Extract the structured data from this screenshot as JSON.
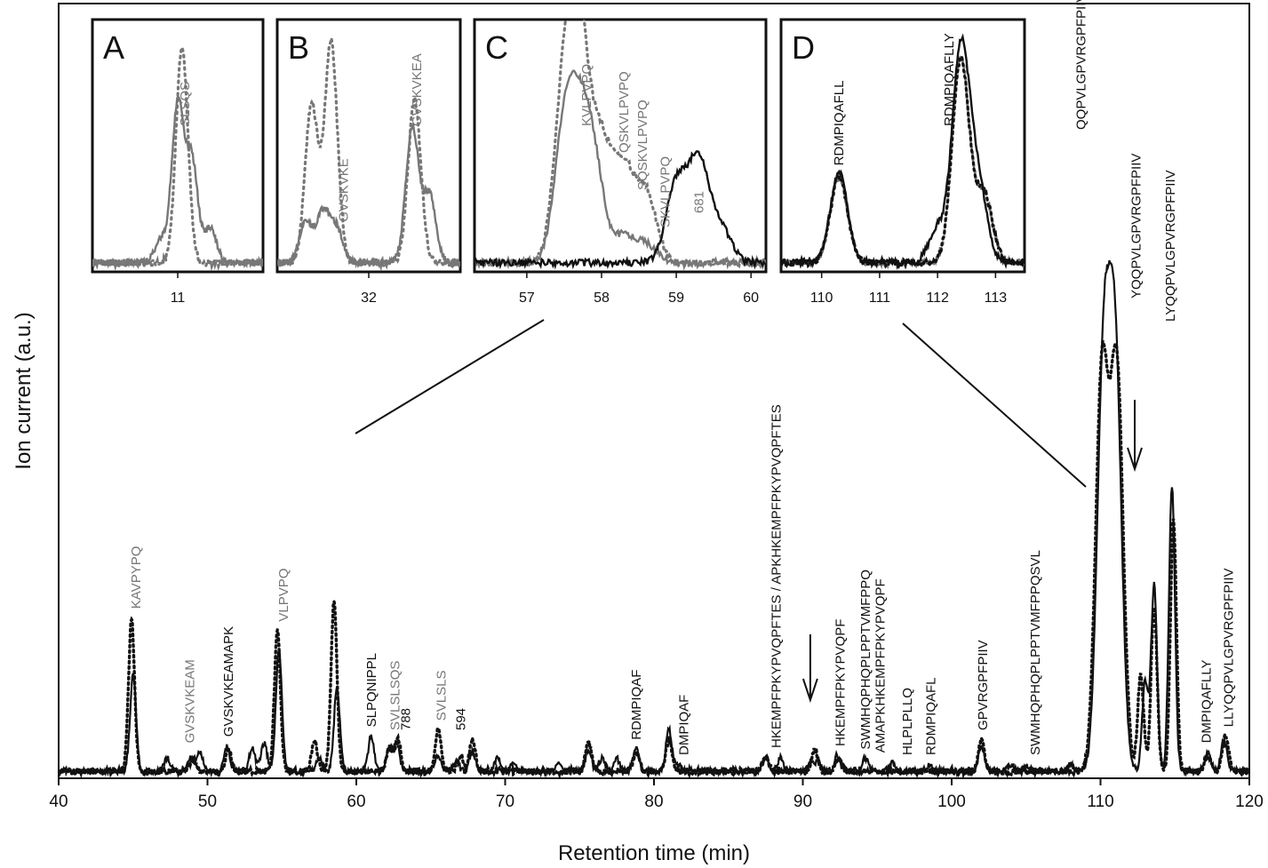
{
  "chart_data": {
    "type": "line",
    "xlabel": "Retention time (min)",
    "ylabel": "Ion current (a.u.)",
    "xlim": [
      40,
      120
    ],
    "xticks": [
      40,
      50,
      60,
      70,
      80,
      90,
      100,
      110,
      120
    ],
    "grid": false,
    "colors": {
      "solid": "#111111",
      "dotted": "#111111",
      "grey_label": "#777777"
    },
    "series": [
      {
        "style": "solid",
        "peaks": [
          [
            45.0,
            0.3
          ],
          [
            47.3,
            0.04
          ],
          [
            48.9,
            0.04
          ],
          [
            49.5,
            0.06
          ],
          [
            51.3,
            0.08
          ],
          [
            53.0,
            0.07
          ],
          [
            53.8,
            0.09
          ],
          [
            54.8,
            0.38
          ],
          [
            57.5,
            0.04
          ],
          [
            58.7,
            0.26
          ],
          [
            61.0,
            0.11
          ],
          [
            62.2,
            0.07
          ],
          [
            62.7,
            0.09
          ],
          [
            65.5,
            0.05
          ],
          [
            66.7,
            0.03
          ],
          [
            67.8,
            0.06
          ],
          [
            69.5,
            0.04
          ],
          [
            70.5,
            0.02
          ],
          [
            73.5,
            0.02
          ],
          [
            75.6,
            0.07
          ],
          [
            76.5,
            0.04
          ],
          [
            77.5,
            0.04
          ],
          [
            78.8,
            0.07
          ],
          [
            81.0,
            0.13
          ],
          [
            81.6,
            0.02
          ],
          [
            87.5,
            0.04
          ],
          [
            88.5,
            0.04
          ],
          [
            90.5,
            0.02
          ],
          [
            91.0,
            0.03
          ],
          [
            92.3,
            0.05
          ],
          [
            94.2,
            0.04
          ],
          [
            96.0,
            0.03
          ],
          [
            98.5,
            0.02
          ],
          [
            102.0,
            0.08
          ],
          [
            104.0,
            0.02
          ],
          [
            105.0,
            0.02
          ],
          [
            108.0,
            0.02
          ],
          [
            110.2,
            1.25
          ],
          [
            111.0,
            1.25
          ],
          [
            113.0,
            0.28
          ],
          [
            113.6,
            0.58
          ],
          [
            114.8,
            0.89
          ],
          [
            117.2,
            0.06
          ],
          [
            118.3,
            0.1
          ]
        ]
      },
      {
        "style": "dotted",
        "peaks": [
          [
            44.9,
            0.48
          ],
          [
            49.0,
            0.04
          ],
          [
            51.4,
            0.07
          ],
          [
            54.7,
            0.44
          ],
          [
            57.2,
            0.09
          ],
          [
            58.5,
            0.53
          ],
          [
            62.2,
            0.07
          ],
          [
            62.8,
            0.1
          ],
          [
            65.5,
            0.13
          ],
          [
            67.0,
            0.05
          ],
          [
            67.8,
            0.1
          ],
          [
            75.6,
            0.09
          ],
          [
            78.8,
            0.06
          ],
          [
            81.0,
            0.1
          ],
          [
            87.5,
            0.04
          ],
          [
            90.8,
            0.07
          ],
          [
            92.4,
            0.04
          ],
          [
            102.0,
            0.1
          ],
          [
            110.1,
            1.25
          ],
          [
            111.1,
            1.25
          ],
          [
            112.7,
            0.3
          ],
          [
            113.6,
            0.52
          ],
          [
            114.9,
            0.79
          ],
          [
            117.2,
            0.05
          ],
          [
            118.4,
            0.11
          ]
        ]
      }
    ],
    "peak_labels": [
      {
        "text": "KAVPYPQ",
        "x": 45.2,
        "grey": true
      },
      {
        "text": "GVSKVKEAM",
        "x": 48.8,
        "grey": true
      },
      {
        "text": "GVSKVKEAMAPK",
        "x": 51.4,
        "grey": false
      },
      {
        "text": "VLPVPQ",
        "x": 55.1,
        "grey": true
      },
      {
        "text": "SLPQNIPPL",
        "x": 61.0,
        "grey": false
      },
      {
        "text": "SVLSLSQS",
        "x": 62.6,
        "grey": true
      },
      {
        "text": "788",
        "x": 63.3,
        "grey": false
      },
      {
        "text": "SVLSLS",
        "x": 65.7,
        "grey": true
      },
      {
        "text": "594",
        "x": 67.0,
        "grey": false
      },
      {
        "text": "RDMPIQAF",
        "x": 78.8,
        "grey": false
      },
      {
        "text": "DMPIQAF",
        "x": 82.0,
        "grey": false
      },
      {
        "text": "HKEMPFPKYPVQPFTES / APKHKEMPFPKYPVQPFTES",
        "x": 88.2,
        "grey": false
      },
      {
        "text": "HKEMPFPKYPVQPF",
        "x": 92.5,
        "grey": false
      },
      {
        "text": "SWMHQPHQPLPPTVMFPPQ",
        "x": 94.2,
        "grey": false
      },
      {
        "text": "AMAPKHKEMPFPKYPVQPF",
        "x": 95.2,
        "grey": false
      },
      {
        "text": "HLPLPLLQ",
        "x": 97.0,
        "grey": false
      },
      {
        "text": "RDMPIQAFL",
        "x": 98.6,
        "grey": false
      },
      {
        "text": "GPVRGPFPIIV",
        "x": 102.1,
        "grey": false
      },
      {
        "text": "SWMHQPHQPLPPTVMFPPQSVL",
        "x": 105.6,
        "grey": false
      },
      {
        "text": "QQPVLGPVRGPFPIIV",
        "x": 108.7,
        "grey": false
      },
      {
        "text": "YQQPVLGPVRGPFPIIV",
        "x": 112.4,
        "grey": false
      },
      {
        "text": "LYQQPVLGPVRGPFPIIV",
        "x": 114.7,
        "grey": false
      },
      {
        "text": "DMPIQAFLLY",
        "x": 117.1,
        "grey": false
      },
      {
        "text": "LLYQQPVLGPVRGPFPIIV",
        "x": 118.6,
        "grey": false
      }
    ],
    "insets": [
      {
        "letter": "A",
        "xlim": [
          5,
          17
        ],
        "xticks": [
          11
        ],
        "solid": [
          [
            9.8,
            0.1
          ],
          [
            11.0,
            0.7
          ],
          [
            12.0,
            0.45
          ],
          [
            13.3,
            0.15
          ]
        ],
        "dotted": [
          [
            11.3,
            0.95
          ]
        ],
        "labels": [
          {
            "text": "SLSQS",
            "x": 11.5
          }
        ]
      },
      {
        "letter": "B",
        "xlim": [
          24,
          40
        ],
        "xticks": [
          32
        ],
        "solid": [
          [
            26.5,
            0.18
          ],
          [
            28.0,
            0.22
          ],
          [
            29.2,
            0.15
          ],
          [
            35.8,
            0.6
          ],
          [
            37.3,
            0.3
          ]
        ],
        "dotted": [
          [
            27.0,
            0.7
          ],
          [
            28.7,
            0.98
          ],
          [
            36.0,
            0.72
          ]
        ],
        "labels": [
          {
            "text": "GVSKVKE",
            "x": 29.8
          },
          {
            "text": "GVSKVKEA",
            "x": 36.2
          }
        ]
      },
      {
        "letter": "C",
        "xlim": [
          56.3,
          60.2
        ],
        "xticks": [
          57,
          58,
          59,
          60
        ],
        "solid": [
          [
            57.5,
            0.55
          ],
          [
            57.7,
            0.5
          ],
          [
            57.9,
            0.4
          ],
          [
            58.3,
            0.12
          ],
          [
            58.6,
            0.08
          ]
        ],
        "dotted": [
          [
            57.5,
            0.7
          ],
          [
            57.7,
            0.95
          ],
          [
            58.0,
            0.5
          ],
          [
            58.3,
            0.4
          ],
          [
            58.6,
            0.3
          ]
        ],
        "dark": [
          [
            59.0,
            0.35
          ],
          [
            59.3,
            0.45
          ],
          [
            59.6,
            0.15
          ]
        ],
        "labels": [
          {
            "text": "KVLPVPQ",
            "x": 57.8
          },
          {
            "text": "QSKVLPVPQ",
            "x": 58.3
          },
          {
            "text": "SQSKVLPVPQ",
            "x": 58.55
          },
          {
            "text": "SKVLPVPQ",
            "x": 58.85
          },
          {
            "text": "681",
            "x": 59.3
          }
        ]
      },
      {
        "letter": "D",
        "xlim": [
          109.3,
          113.5
        ],
        "xticks": [
          110,
          111,
          112,
          113
        ],
        "solid": [
          [
            110.3,
            0.4
          ],
          [
            112.0,
            0.15
          ],
          [
            112.4,
            0.95
          ],
          [
            112.7,
            0.35
          ]
        ],
        "dotted": [
          [
            110.3,
            0.38
          ],
          [
            112.4,
            0.9
          ],
          [
            112.8,
            0.3
          ]
        ],
        "labels": [
          {
            "text": "RDMPIQAFLL",
            "x": 110.3
          },
          {
            "text": "RDMPIQAFLLY",
            "x": 112.2
          }
        ]
      }
    ]
  }
}
